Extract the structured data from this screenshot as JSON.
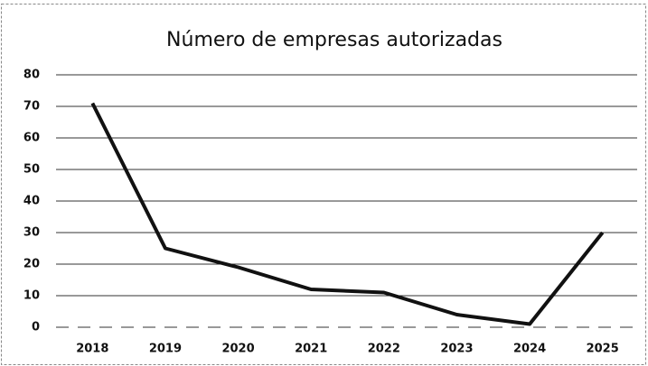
{
  "chart_data": {
    "type": "line",
    "title": "Número de empresas autorizadas",
    "categories": [
      "2018",
      "2019",
      "2020",
      "2021",
      "2022",
      "2023",
      "2024",
      "2025"
    ],
    "series": [
      {
        "name": "Número de empresas autorizadas",
        "color": "#111111",
        "values": [
          71,
          25,
          19,
          12,
          11,
          4,
          1,
          30
        ]
      }
    ],
    "ylim": [
      0,
      80
    ],
    "yticks": [
      0,
      10,
      20,
      30,
      40,
      50,
      60,
      70,
      80
    ],
    "grid": true
  }
}
